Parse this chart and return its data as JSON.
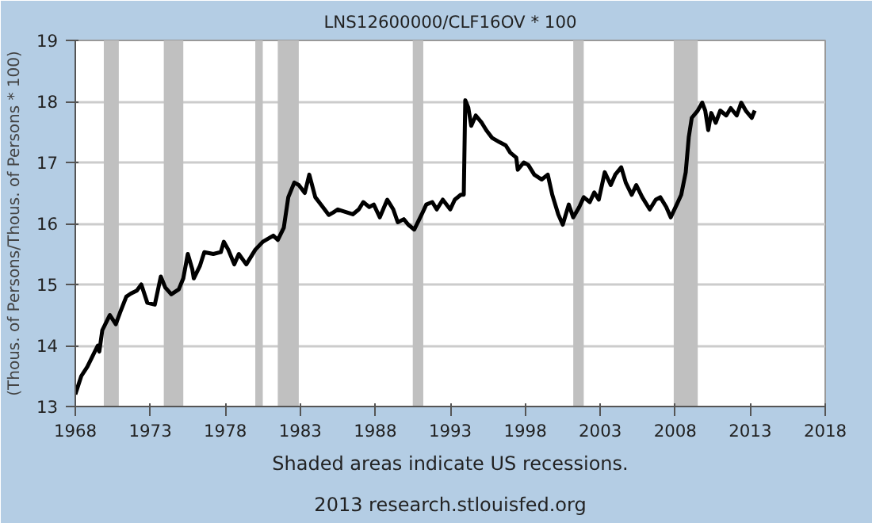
{
  "chart_data": {
    "type": "line",
    "title": "LNS12600000/CLF16OV * 100",
    "ylabel": "(Thous. of Persons/Thous. of Persons * 100)",
    "annotations": [
      "Shaded areas indicate US recessions.",
      "2013 research.stlouisfed.org"
    ],
    "xlim": [
      1968,
      2018
    ],
    "xticks": [
      1968,
      1973,
      1978,
      1983,
      1988,
      1993,
      1998,
      2003,
      2008,
      2013,
      2018
    ],
    "ylim": [
      13,
      19
    ],
    "yticks": [
      13,
      14,
      15,
      16,
      17,
      18,
      19
    ],
    "grid": "y",
    "marker": "none",
    "line_style": "solid",
    "bands": [
      {
        "axis": "x",
        "from": 1969.9,
        "to": 1970.9,
        "color": "#c0c0c0"
      },
      {
        "axis": "x",
        "from": 1973.9,
        "to": 1975.2,
        "color": "#c0c0c0"
      },
      {
        "axis": "x",
        "from": 1980.0,
        "to": 1980.5,
        "color": "#c0c0c0"
      },
      {
        "axis": "x",
        "from": 1981.5,
        "to": 1982.9,
        "color": "#c0c0c0"
      },
      {
        "axis": "x",
        "from": 1990.5,
        "to": 1991.2,
        "color": "#c0c0c0"
      },
      {
        "axis": "x",
        "from": 2001.2,
        "to": 2001.9,
        "color": "#c0c0c0"
      },
      {
        "axis": "x",
        "from": 2007.9,
        "to": 2009.5,
        "color": "#c0c0c0"
      }
    ],
    "series": [
      {
        "color": "#000000",
        "x": [
          1968.0,
          1968.4,
          1968.8,
          1969.1,
          1969.5,
          1969.6,
          1969.8,
          1970.2,
          1970.3,
          1970.7,
          1971.0,
          1971.4,
          1971.7,
          1972.1,
          1972.4,
          1972.8,
          1973.3,
          1973.7,
          1974.0,
          1974.4,
          1974.9,
          1975.2,
          1975.5,
          1975.8,
          1975.9,
          1976.3,
          1976.6,
          1977.2,
          1977.7,
          1977.9,
          1978.2,
          1978.6,
          1978.9,
          1979.4,
          1980.0,
          1980.5,
          1981.2,
          1981.5,
          1981.9,
          1982.2,
          1982.6,
          1982.9,
          1983.3,
          1983.6,
          1984.0,
          1984.5,
          1984.9,
          1985.2,
          1985.5,
          1986.0,
          1986.5,
          1986.9,
          1987.2,
          1987.6,
          1987.9,
          1988.3,
          1988.8,
          1989.2,
          1989.5,
          1989.9,
          1990.2,
          1990.6,
          1991.1,
          1991.4,
          1991.8,
          1992.1,
          1992.5,
          1993.0,
          1993.3,
          1993.7,
          1993.9,
          1994.0,
          1994.2,
          1994.4,
          1994.7,
          1995.1,
          1995.4,
          1995.8,
          1996.3,
          1996.7,
          1997.0,
          1997.4,
          1997.5,
          1997.9,
          1998.2,
          1998.6,
          1999.1,
          1999.5,
          1999.8,
          2000.2,
          2000.5,
          2000.9,
          2001.2,
          2001.6,
          2001.9,
          2002.3,
          2002.6,
          2002.9,
          2003.3,
          2003.7,
          2004.0,
          2004.4,
          2004.7,
          2005.1,
          2005.4,
          2005.8,
          2006.3,
          2006.7,
          2007.0,
          2007.4,
          2007.7,
          2008.1,
          2008.4,
          2008.7,
          2008.9,
          2009.1,
          2009.5,
          2009.8,
          2010.0,
          2010.2,
          2010.4,
          2010.7,
          2011.0,
          2011.4,
          2011.7,
          2012.1,
          2012.4,
          2012.7,
          2013.1,
          2013.3
        ],
        "values": [
          13.2,
          13.5,
          13.65,
          13.8,
          14.0,
          13.9,
          14.25,
          14.45,
          14.5,
          14.35,
          14.55,
          14.8,
          14.85,
          14.9,
          15.0,
          14.7,
          14.67,
          15.13,
          14.95,
          14.84,
          14.92,
          15.1,
          15.5,
          15.25,
          15.1,
          15.3,
          15.53,
          15.5,
          15.53,
          15.7,
          15.57,
          15.33,
          15.5,
          15.33,
          15.57,
          15.7,
          15.8,
          15.73,
          15.93,
          16.43,
          16.67,
          16.63,
          16.5,
          16.8,
          16.43,
          16.27,
          16.14,
          16.18,
          16.23,
          16.19,
          16.15,
          16.23,
          16.35,
          16.27,
          16.31,
          16.1,
          16.39,
          16.23,
          16.02,
          16.07,
          15.98,
          15.9,
          16.15,
          16.31,
          16.35,
          16.23,
          16.39,
          16.23,
          16.39,
          16.47,
          16.47,
          18.02,
          17.9,
          17.6,
          17.77,
          17.65,
          17.53,
          17.4,
          17.33,
          17.28,
          17.16,
          17.08,
          16.88,
          17.0,
          16.96,
          16.8,
          16.72,
          16.8,
          16.47,
          16.15,
          15.98,
          16.31,
          16.1,
          16.27,
          16.43,
          16.35,
          16.51,
          16.39,
          16.84,
          16.63,
          16.8,
          16.92,
          16.67,
          16.47,
          16.63,
          16.43,
          16.23,
          16.39,
          16.43,
          16.27,
          16.1,
          16.31,
          16.47,
          16.84,
          17.41,
          17.73,
          17.85,
          17.98,
          17.85,
          17.53,
          17.81,
          17.65,
          17.85,
          17.77,
          17.89,
          17.77,
          17.98,
          17.85,
          17.73,
          17.85
        ]
      }
    ]
  }
}
